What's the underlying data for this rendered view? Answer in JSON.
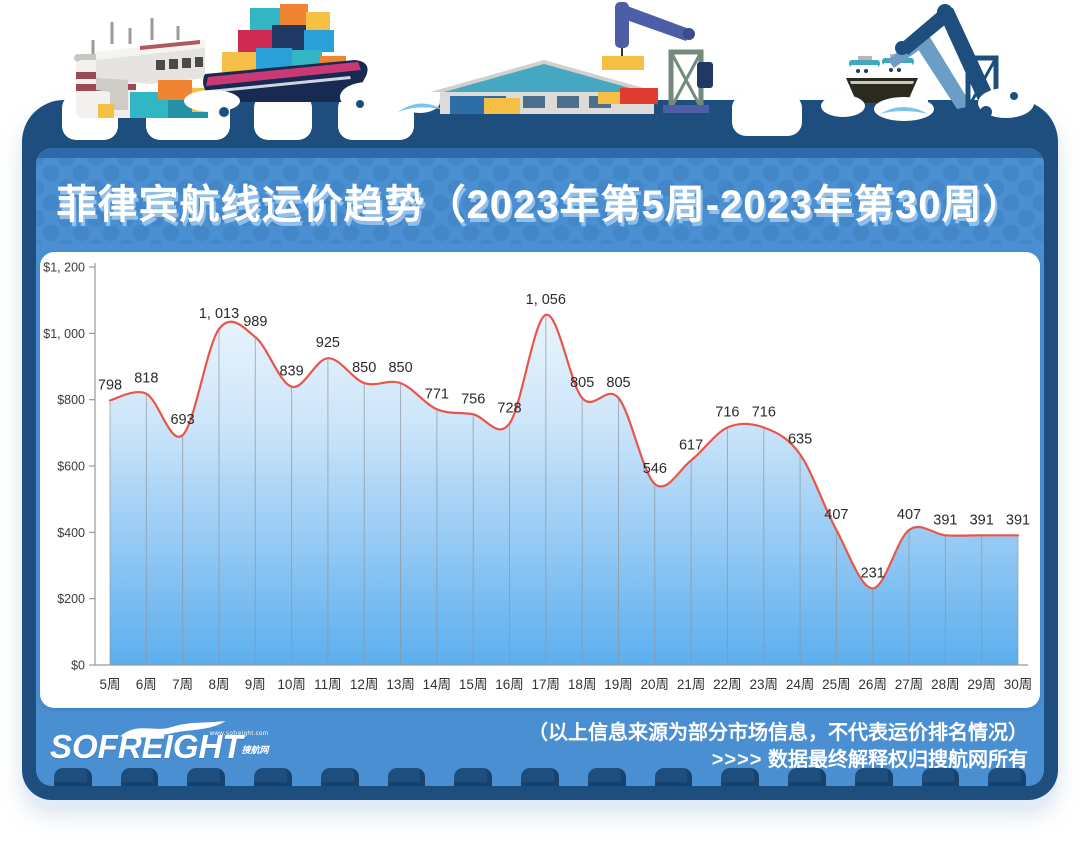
{
  "header": {
    "title": "菲律宾航线运价趋势（2023年第5周-2023年第30周）"
  },
  "chart_data": {
    "type": "area",
    "title": "菲律宾航线运价趋势（2023年第5周-2023年第30周）",
    "xlabel": "",
    "ylabel": "",
    "ylim": [
      0,
      1200
    ],
    "grid": "vertical-only",
    "categories": [
      "5周",
      "6周",
      "7周",
      "8周",
      "9周",
      "10周",
      "11周",
      "12周",
      "13周",
      "14周",
      "15周",
      "16周",
      "17周",
      "18周",
      "19周",
      "20周",
      "21周",
      "22周",
      "23周",
      "24周",
      "25周",
      "26周",
      "27周",
      "28周",
      "29周",
      "30周"
    ],
    "values": [
      798,
      818,
      693,
      1013,
      989,
      839,
      925,
      850,
      850,
      771,
      756,
      728,
      1056,
      805,
      805,
      546,
      617,
      716,
      716,
      635,
      407,
      231,
      407,
      391,
      391,
      391
    ],
    "value_labels": [
      "798",
      "818",
      "693",
      "1, 013",
      "989",
      "839",
      "925",
      "850",
      "850",
      "771",
      "756",
      "728",
      "1, 056",
      "805",
      "805",
      "546",
      "617",
      "716",
      "716",
      "635",
      "407",
      "231",
      "407",
      "391",
      "391",
      "391"
    ],
    "y_tick_values": [
      0,
      200,
      400,
      600,
      800,
      1000,
      1200
    ],
    "y_tick_labels": [
      "$0",
      "$200",
      "$400",
      "$600",
      "$800",
      "$1, 000",
      "$1, 200"
    ],
    "colors": {
      "line": "#e8564a",
      "area_top": "#f5fafe",
      "area_mid": "#cfe6fa",
      "area_bottom": "#5caeee",
      "grid": "#8f959c",
      "axis": "#999999",
      "value_label": "#2a2a2a",
      "tick_label": "#3a3a3a"
    }
  },
  "footer": {
    "logo_text": "SOFREIGHT",
    "logo_tagline_url": "www.sofreight.com",
    "logo_tagline_cn": "搜航网",
    "disclaimer_line1": "（以上信息来源为部分市场信息，不代表运价排名情况）",
    "arrows": ">>>>",
    "disclaimer_line2": "数据最终解释权归搜航网所有"
  },
  "theme": {
    "frame_navy": "#1d4e7e",
    "panel_blue": "#4a8fd2",
    "strip_blue": "#2e6aa8",
    "card_white": "#ffffff"
  }
}
